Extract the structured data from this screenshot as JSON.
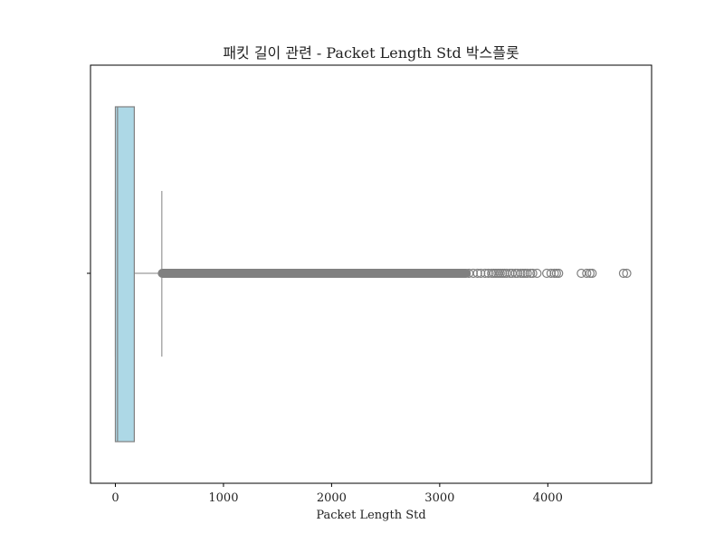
{
  "chart_data": {
    "type": "boxplot",
    "orientation": "horizontal",
    "title": "패킷 길이 관련 - Packet Length Std 박스플롯",
    "xlabel": "Packet Length Std",
    "ylabel": "",
    "xlim": [
      -230,
      4960
    ],
    "xticks": [
      0,
      1000,
      2000,
      3000,
      4000
    ],
    "xtick_labels": [
      "0",
      "1000",
      "2000",
      "3000",
      "4000"
    ],
    "grid": false,
    "box": {
      "whisker_low": 0,
      "q1": 0,
      "median": 20,
      "q3": 175,
      "whisker_high": 430
    },
    "outliers": {
      "dense_range": [
        430,
        3250
      ],
      "points": [
        3270,
        3310,
        3350,
        3380,
        3420,
        3450,
        3480,
        3500,
        3520,
        3540,
        3560,
        3580,
        3600,
        3620,
        3650,
        3670,
        3700,
        3720,
        3750,
        3770,
        3790,
        3810,
        3840,
        3860,
        3900,
        3990,
        4030,
        4060,
        4080,
        4100,
        4310,
        4360,
        4390,
        4410,
        4700,
        4730
      ]
    },
    "colors": {
      "box_fill": "#add8e6",
      "line": "#808080",
      "axes": "#000000",
      "background": "#ffffff"
    }
  }
}
